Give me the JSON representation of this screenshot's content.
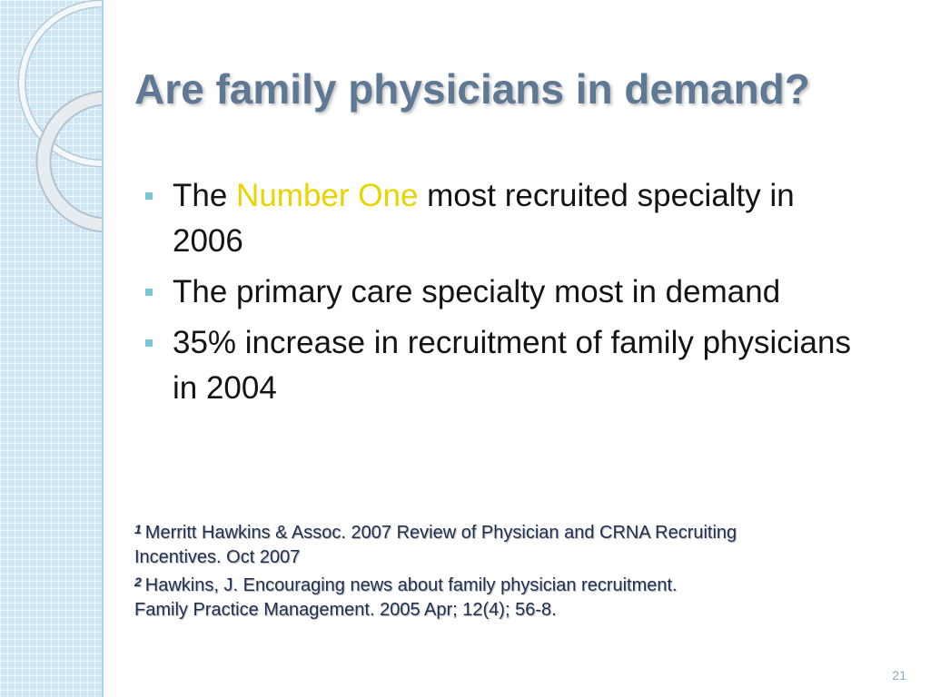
{
  "slide": {
    "title": "Are family physicians in demand?",
    "bullets": [
      {
        "prefix": "The ",
        "highlight": "Number One",
        "suffix": " most recruited specialty in",
        "continuation": "2006"
      },
      {
        "text": "The primary care specialty most in demand"
      },
      {
        "text": "35% increase in recruitment of family physicians",
        "continuation": "in 2004"
      }
    ],
    "references": [
      {
        "marker": "1",
        "lines": [
          "Merritt Hawkins & Assoc. 2007 Review of Physician and CRNA Recruiting",
          "Incentives. Oct 2007"
        ]
      },
      {
        "marker": "2",
        "lines": [
          "Hawkins, J. Encouraging news about family physician recruitment.",
          "Family Practice Management. 2005 Apr; 12(4); 56-8."
        ]
      }
    ],
    "page_number": "21"
  },
  "colors": {
    "title": "#5f7894",
    "highlight": "#e8d500",
    "bullet_marker": "#79c6d6",
    "body_text": "#141414",
    "references": "#1f2f4f",
    "page_number": "#8aa9c4",
    "side_strip": "#cfe6f4"
  },
  "decor": {
    "side_strip_pattern": "light-blue-grid",
    "side_ornament": "ring-arcs"
  }
}
